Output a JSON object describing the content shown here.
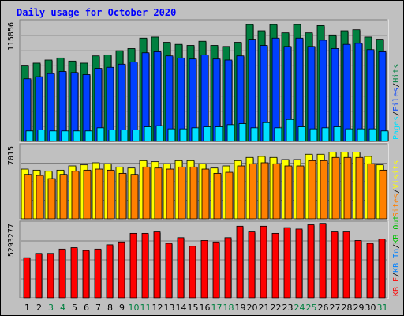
{
  "chart_data": {
    "type": "bar",
    "title": "Daily usage for October 2020",
    "categories": [
      "1",
      "2",
      "3",
      "4",
      "5",
      "6",
      "7",
      "8",
      "9",
      "10",
      "11",
      "12",
      "13",
      "14",
      "15",
      "16",
      "17",
      "18",
      "19",
      "20",
      "21",
      "22",
      "23",
      "24",
      "25",
      "26",
      "27",
      "28",
      "29",
      "30",
      "31"
    ],
    "weekend_days": [
      "3",
      "4",
      "10",
      "11",
      "17",
      "18",
      "24",
      "25",
      "31"
    ],
    "panels": [
      {
        "name": "requests",
        "y_label_value": "115856",
        "ylim": [
          0,
          115856
        ],
        "series": [
          {
            "name": "Hits",
            "color": "#008040",
            "values": [
              73000,
              75000,
              78000,
              80000,
              77000,
              75000,
              82000,
              83000,
              87000,
              89000,
              99000,
              100000,
              95000,
              93000,
              92000,
              96000,
              92000,
              91000,
              95000,
              112000,
              106000,
              112000,
              104000,
              112000,
              104000,
              111000,
              102000,
              106000,
              107000,
              100000,
              98000
            ]
          },
          {
            "name": "Files",
            "color": "#0040ff",
            "values": [
              60000,
              62000,
              65000,
              67000,
              66000,
              64000,
              70000,
              71000,
              74000,
              76000,
              85000,
              86000,
              82000,
              80000,
              79000,
              83000,
              79000,
              78000,
              82000,
              98000,
              92000,
              99000,
              91000,
              99000,
              91000,
              97000,
              89000,
              93000,
              94000,
              88000,
              86000
            ]
          },
          {
            "name": "Pages",
            "color": "#00e0ff",
            "values": [
              10000,
              11000,
              10000,
              10000,
              10000,
              10000,
              13000,
              11000,
              11000,
              11000,
              14000,
              15000,
              12000,
              12000,
              13000,
              14000,
              14000,
              16000,
              17000,
              13000,
              18000,
              13000,
              21000,
              14000,
              12000,
              13000,
              14000,
              12000,
              12000,
              12000,
              10000
            ]
          }
        ]
      },
      {
        "name": "visits",
        "y_label_value": "7015",
        "ylim": [
          0,
          7015
        ],
        "series": [
          {
            "name": "Visits",
            "color": "#ffff00",
            "values": [
              4700,
              4600,
              4500,
              4600,
              5000,
              5100,
              5300,
              5200,
              4900,
              4800,
              5500,
              5400,
              5200,
              5500,
              5500,
              5200,
              4800,
              5000,
              5500,
              5800,
              5900,
              5800,
              5600,
              5600,
              6100,
              6100,
              6300,
              6300,
              6300,
              5900,
              5100
            ]
          },
          {
            "name": "Sites",
            "color": "#ff8000",
            "values": [
              4200,
              4100,
              3800,
              4200,
              4500,
              4600,
              4700,
              4600,
              4300,
              4200,
              4900,
              4800,
              4700,
              4900,
              4900,
              4700,
              4300,
              4400,
              5000,
              5200,
              5300,
              5200,
              5000,
              5000,
              5500,
              5500,
              5800,
              5800,
              5800,
              5200,
              4600
            ]
          }
        ]
      },
      {
        "name": "kbytes",
        "y_label_value": "5293277",
        "ylim": [
          0,
          5293277
        ],
        "series": [
          {
            "name": "KB In",
            "color": "#0080ff",
            "values": [
              0,
              0,
              0,
              0,
              0,
              0,
              0,
              0,
              0,
              0,
              0,
              0,
              0,
              0,
              0,
              0,
              0,
              0,
              0,
              0,
              0,
              0,
              0,
              0,
              0,
              0,
              0,
              0,
              0,
              0,
              0
            ]
          },
          {
            "name": "KB Out",
            "color": "#00c000",
            "values": [
              0,
              0,
              0,
              0,
              0,
              0,
              0,
              0,
              0,
              0,
              0,
              0,
              0,
              0,
              0,
              0,
              0,
              0,
              0,
              0,
              0,
              0,
              0,
              0,
              0,
              0,
              0,
              0,
              0,
              0,
              0
            ]
          },
          {
            "name": "KB F",
            "color": "#ff0000",
            "values": [
              2800000,
              3100000,
              3100000,
              3400000,
              3500000,
              3300000,
              3400000,
              3700000,
              3900000,
              4500000,
              4500000,
              4600000,
              3800000,
              4200000,
              3600000,
              4000000,
              3900000,
              4200000,
              5000000,
              4600000,
              5000000,
              4500000,
              4900000,
              4800000,
              5100000,
              5200000,
              4600000,
              4600000,
              4000000,
              3800000,
              4100000
            ]
          }
        ]
      }
    ],
    "right_legends": [
      [
        {
          "text": "Pages",
          "color": "#00e0ff"
        },
        {
          "text": "/",
          "color": "#000000"
        },
        {
          "text": "Files",
          "color": "#0040ff"
        },
        {
          "text": "/",
          "color": "#000000"
        },
        {
          "text": "Hits",
          "color": "#008040"
        }
      ],
      [
        {
          "text": "Sites",
          "color": "#ff8000"
        },
        {
          "text": "/",
          "color": "#000000"
        },
        {
          "text": "Visits",
          "color": "#ffff00"
        }
      ],
      [
        {
          "text": "KB F",
          "color": "#ff0000"
        },
        {
          "text": "/",
          "color": "#000000"
        },
        {
          "text": "KB In",
          "color": "#0080ff"
        },
        {
          "text": "/",
          "color": "#000000"
        },
        {
          "text": "KB Out",
          "color": "#00c000"
        }
      ]
    ],
    "colors": {
      "background": "#c0c0c0",
      "title": "#0000ff",
      "plot_bg": "#c0c0c0",
      "weekday_label": "#000000",
      "weekend_label": "#008040"
    },
    "grid": true,
    "legend_position": "right"
  }
}
